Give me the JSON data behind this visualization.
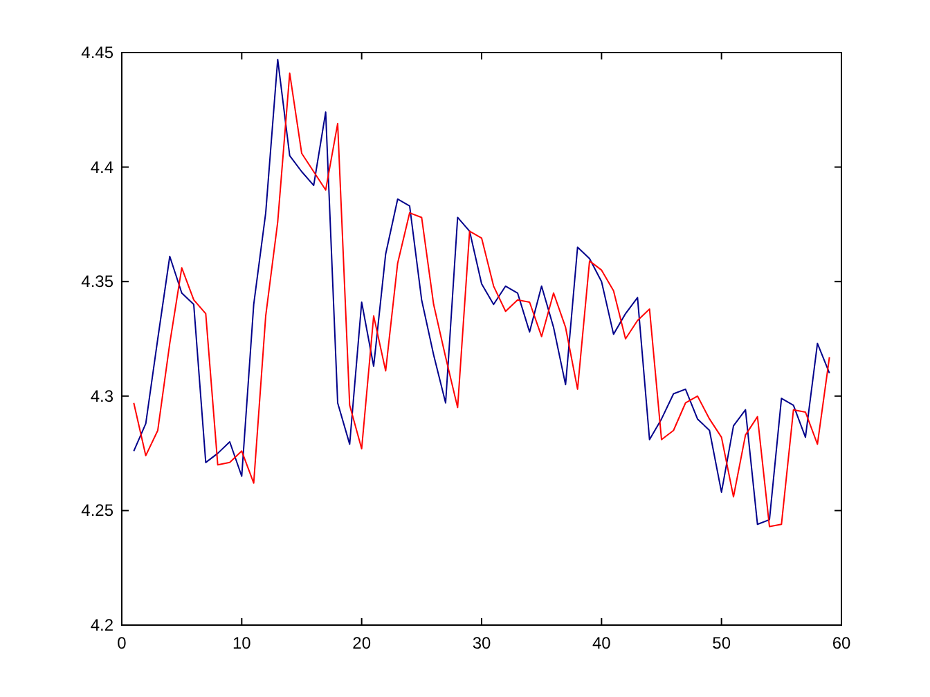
{
  "chart_data": {
    "type": "line",
    "x": [
      1,
      2,
      3,
      4,
      5,
      6,
      7,
      8,
      9,
      10,
      11,
      12,
      13,
      14,
      15,
      16,
      17,
      18,
      19,
      20,
      21,
      22,
      23,
      24,
      25,
      26,
      27,
      28,
      29,
      30,
      31,
      32,
      33,
      34,
      35,
      36,
      37,
      38,
      39,
      40,
      41,
      42,
      43,
      44,
      45,
      46,
      47,
      48,
      49,
      50,
      51,
      52,
      53,
      54,
      55,
      56,
      57,
      58,
      59
    ],
    "series": [
      {
        "color": "#00008b",
        "values": [
          4.276,
          4.288,
          4.325,
          4.361,
          4.345,
          4.34,
          4.271,
          4.275,
          4.28,
          4.265,
          4.34,
          4.38,
          4.447,
          4.405,
          4.398,
          4.392,
          4.424,
          4.297,
          4.279,
          4.341,
          4.313,
          4.362,
          4.386,
          4.383,
          4.342,
          4.318,
          4.297,
          4.378,
          4.372,
          4.349,
          4.34,
          4.348,
          4.345,
          4.328,
          4.348,
          4.33,
          4.305,
          4.365,
          4.36,
          4.35,
          4.327,
          4.336,
          4.343,
          4.281,
          4.29,
          4.301,
          4.303,
          4.29,
          4.285,
          4.258,
          4.287,
          4.294,
          4.244,
          4.246,
          4.299,
          4.296,
          4.282,
          4.323,
          4.31
        ]
      },
      {
        "color": "#ff0000",
        "values": [
          4.297,
          4.274,
          4.285,
          4.323,
          4.356,
          4.342,
          4.336,
          4.27,
          4.271,
          4.276,
          4.262,
          4.335,
          4.376,
          4.441,
          4.406,
          4.398,
          4.39,
          4.419,
          4.296,
          4.277,
          4.335,
          4.311,
          4.358,
          4.38,
          4.378,
          4.34,
          4.317,
          4.295,
          4.372,
          4.369,
          4.348,
          4.337,
          4.342,
          4.341,
          4.326,
          4.345,
          4.33,
          4.303,
          4.359,
          4.355,
          4.346,
          4.325,
          4.333,
          4.338,
          4.281,
          4.285,
          4.297,
          4.3,
          4.29,
          4.282,
          4.256,
          4.283,
          4.291,
          4.243,
          4.244,
          4.294,
          4.293,
          4.279,
          4.317
        ]
      }
    ],
    "xlim": [
      0,
      60
    ],
    "xticks": [
      0,
      10,
      20,
      30,
      40,
      50,
      60
    ],
    "ylim": [
      4.2,
      4.45
    ],
    "yticks": [
      {
        "value": 4.2,
        "label": "4.2"
      },
      {
        "value": 4.25,
        "label": "4.25"
      },
      {
        "value": 4.3,
        "label": "4.3"
      },
      {
        "value": 4.35,
        "label": "4.35"
      },
      {
        "value": 4.4,
        "label": "4.4"
      },
      {
        "value": 4.45,
        "label": "4.45"
      }
    ],
    "grid": false,
    "marker": "none",
    "line_style": "solid"
  }
}
